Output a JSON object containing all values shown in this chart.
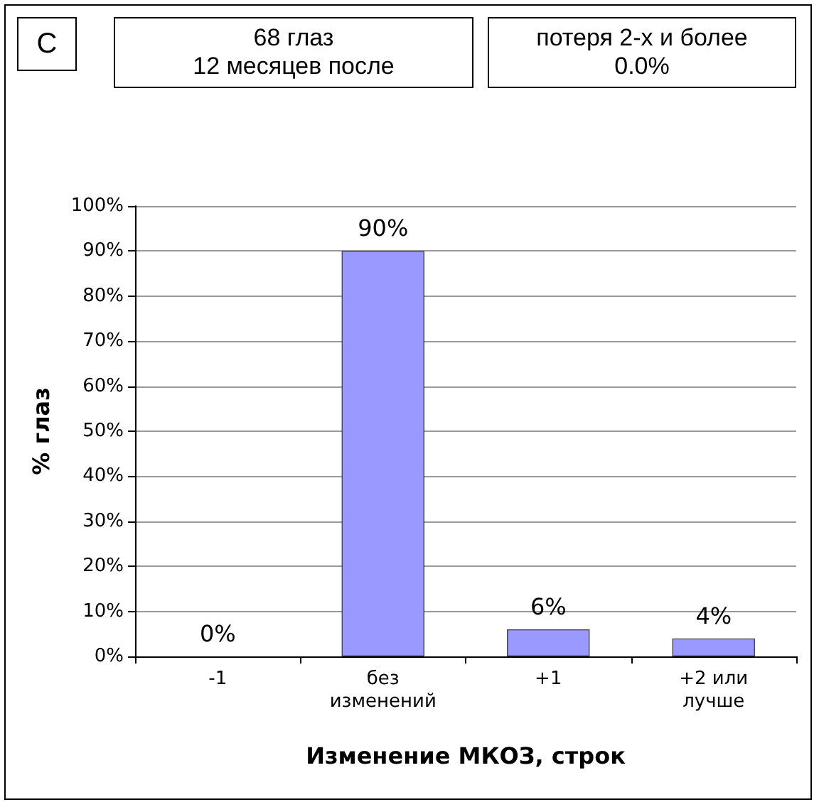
{
  "chart_data": {
    "type": "bar",
    "xlabel": "Изменение МКОЗ, строк",
    "ylabel": "% глаз",
    "categories": [
      "-1",
      "без\nизменений",
      "+1",
      "+2 или\nлучше"
    ],
    "values": [
      0,
      90,
      6,
      4
    ],
    "color": "#9999ff",
    "value_labels": [
      "0%",
      "90%",
      "6%",
      "4%"
    ],
    "ylim": [
      0,
      100
    ],
    "yticks": [
      {
        "value": 0,
        "label": "0%"
      },
      {
        "value": 10,
        "label": "10%"
      },
      {
        "value": 20,
        "label": "20%"
      },
      {
        "value": 30,
        "label": "30%"
      },
      {
        "value": 40,
        "label": "40%"
      },
      {
        "value": 50,
        "label": "50%"
      },
      {
        "value": 60,
        "label": "60%"
      },
      {
        "value": 70,
        "label": "70%"
      },
      {
        "value": 80,
        "label": "80%"
      },
      {
        "value": 90,
        "label": "90%"
      },
      {
        "value": 100,
        "label": "100%"
      }
    ],
    "grid": "y",
    "annotations": [
      "C",
      "68 глаз\n12 месяцев после",
      "потеря 2-х и более\n0.0%"
    ]
  }
}
